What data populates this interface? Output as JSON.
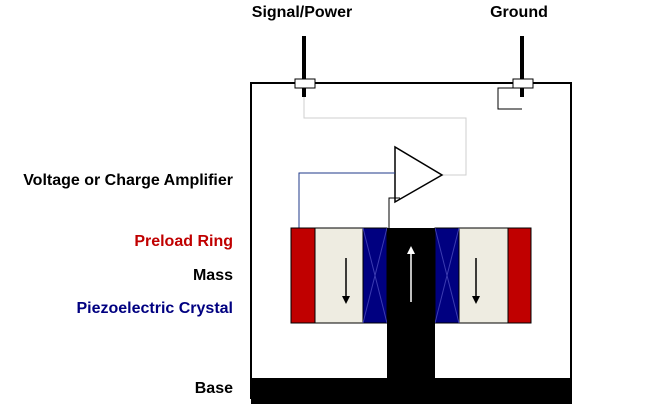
{
  "labels": {
    "signal_power": "Signal/Power",
    "ground": "Ground",
    "amplifier": "Voltage or Charge Amplifier",
    "preload_ring": "Preload Ring",
    "mass": "Mass",
    "piezo_crystal": "Piezoelectric Crystal",
    "base": "Base"
  },
  "colors": {
    "preload_ring": "#c00000",
    "mass": "#eeece1",
    "piezo_crystal": "#000080",
    "base": "#000000",
    "wire_blue": "#1f3a8a",
    "text_default": "#000000"
  }
}
